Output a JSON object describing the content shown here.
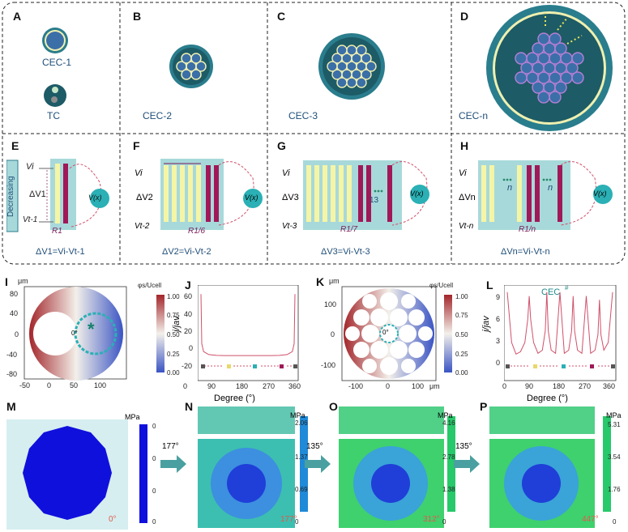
{
  "panels": {
    "A": {
      "label": "A",
      "captions": [
        "CEC-1",
        "TC"
      ]
    },
    "B": {
      "label": "B",
      "caption": "CEC-2"
    },
    "C": {
      "label": "C",
      "caption": "CEC-3"
    },
    "D": {
      "label": "D",
      "caption": "CEC-n"
    },
    "E": {
      "label": "E",
      "side_label": "Decreasing",
      "vtop": "Vi",
      "vbot": "Vt-1",
      "dv": "ΔV1",
      "r": "R1",
      "vx": "V(x)",
      "eq": "ΔV1=Vi-Vt-1"
    },
    "F": {
      "label": "F",
      "vtop": "Vi",
      "vbot": "Vt-2",
      "dv": "ΔV2",
      "r": "R1/6",
      "vx": "V(x)",
      "eq": "ΔV2=Vi-Vt-2"
    },
    "G": {
      "label": "G",
      "vtop": "Vi",
      "vbot": "Vt-3",
      "dv": "ΔV3",
      "r": "R1/7",
      "vx": "V(x)",
      "count": "13",
      "eq": "ΔV3=Vi-Vt-3"
    },
    "H": {
      "label": "H",
      "vtop": "Vi",
      "vbot": "Vt-n",
      "dv": "ΔVn",
      "r": "R1/n",
      "vx": "V(x)",
      "n1": "n",
      "n2": "n",
      "eq": "ΔVn=Vi-Vt-n"
    },
    "I": {
      "label": "I",
      "unit": "μm",
      "cb_title": "φs/Ucell",
      "cb_ticks": [
        "1.00",
        "0.75",
        "0.50",
        "0.25",
        "0.00"
      ],
      "yticks": [
        "80",
        "40",
        "0",
        "-40",
        "-80"
      ],
      "xticks": [
        "-50",
        "0",
        "50",
        "100"
      ],
      "angle": "0°",
      "marker": "*"
    },
    "J": {
      "label": "J",
      "ylabel": "j/jav",
      "xlabel": "Degree (°)",
      "yticks": [
        "60",
        "40",
        "20",
        "0",
        "-20"
      ],
      "xticks": [
        "0",
        "90",
        "180",
        "270",
        "360"
      ]
    },
    "K": {
      "label": "K",
      "unit": "μm",
      "cb_title": "φs/Ucell",
      "cb_ticks": [
        "1.00",
        "0.75",
        "0.50",
        "0.25",
        "0.00"
      ],
      "yticks": [
        "100",
        "0",
        "-100"
      ],
      "xticks": [
        "-100",
        "0",
        "100"
      ],
      "xunit": "μm",
      "angle": "0°"
    },
    "L": {
      "label": "L",
      "ylabel": "j/jav",
      "xlabel": "Degree (°)",
      "legend": "CEC",
      "legend_mark": "#",
      "yticks": [
        "9",
        "6",
        "3",
        "0"
      ],
      "xticks": [
        "0",
        "90",
        "180",
        "270",
        "360"
      ]
    },
    "M": {
      "label": "M",
      "unit": "MPa",
      "cb_ticks": [
        "0",
        "0",
        "0",
        "0"
      ],
      "angle": "0°"
    },
    "N": {
      "label": "N",
      "unit": "MPa",
      "cb_ticks": [
        "2.06",
        "1.37",
        "0.69",
        "0"
      ],
      "angle": "177°",
      "arrow": "177°"
    },
    "O": {
      "label": "O",
      "unit": "MPa",
      "cb_ticks": [
        "4.16",
        "2.78",
        "1.38",
        "0"
      ],
      "angle": "312°",
      "arrow": "135°"
    },
    "P": {
      "label": "P",
      "unit": "MPa",
      "cb_ticks": [
        "5.31",
        "3.54",
        "1.76",
        "0"
      ],
      "angle": "447°",
      "arrow": "135°"
    }
  },
  "chart_data": [
    {
      "type": "line",
      "panel": "J",
      "x": [
        0,
        3,
        10,
        30,
        60,
        90,
        120,
        150,
        180,
        210,
        240,
        270,
        300,
        330,
        350,
        357,
        360
      ],
      "values": [
        64,
        14,
        6,
        3,
        2.2,
        2,
        2,
        2,
        2,
        2,
        2,
        2,
        2.2,
        3,
        6,
        14,
        64
      ],
      "xlabel": "Degree (°)",
      "ylabel": "j/jav",
      "xlim": [
        0,
        360
      ],
      "ylim": [
        -20,
        70
      ]
    },
    {
      "type": "line",
      "panel": "L",
      "x": [
        0,
        15,
        30,
        45,
        60,
        70,
        75,
        80,
        90,
        105,
        120,
        130,
        135,
        140,
        150,
        165,
        180,
        195,
        210,
        220,
        225,
        230,
        240,
        255,
        270,
        285,
        300,
        310,
        315,
        320,
        330,
        345,
        360
      ],
      "values": [
        9.5,
        3,
        1.5,
        1.8,
        3,
        6,
        9,
        6,
        3,
        1.6,
        2,
        4.5,
        9.5,
        4.5,
        2,
        1.6,
        9.5,
        1.6,
        2,
        4.5,
        9,
        4.5,
        2,
        1.6,
        9,
        1.6,
        2,
        4,
        8.5,
        4,
        2,
        3,
        9.5
      ],
      "xlabel": "Degree (°)",
      "ylabel": "j/jav",
      "xlim": [
        0,
        360
      ],
      "ylim": [
        -1.5,
        10
      ]
    }
  ]
}
